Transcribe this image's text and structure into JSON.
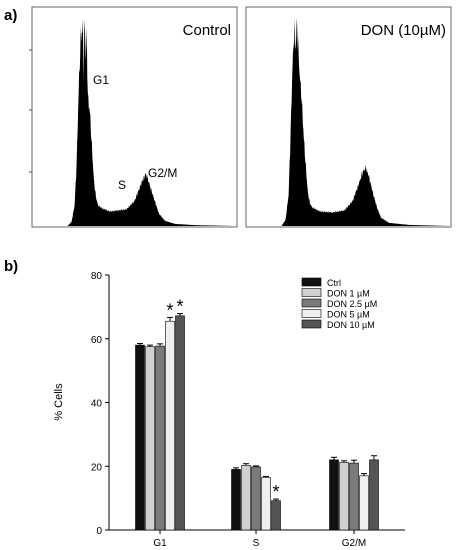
{
  "panel_a": {
    "label": "a)",
    "histograms": [
      {
        "title": "Control",
        "annotations": [
          "G1",
          "S",
          "G2/M"
        ],
        "peaks": {
          "g1_channel": 0.255,
          "g2m_channel": 0.56
        },
        "profile": [
          [
            0.0,
            0
          ],
          [
            0.17,
            0
          ],
          [
            0.19,
            0.02
          ],
          [
            0.205,
            0.1
          ],
          [
            0.215,
            0.3
          ],
          [
            0.225,
            0.65
          ],
          [
            0.235,
            0.9
          ],
          [
            0.245,
            0.96
          ],
          [
            0.25,
            0.75
          ],
          [
            0.255,
            1.0
          ],
          [
            0.26,
            0.8
          ],
          [
            0.265,
            0.92
          ],
          [
            0.27,
            0.62
          ],
          [
            0.28,
            0.55
          ],
          [
            0.29,
            0.38
          ],
          [
            0.3,
            0.22
          ],
          [
            0.31,
            0.14
          ],
          [
            0.32,
            0.1
          ],
          [
            0.34,
            0.085
          ],
          [
            0.38,
            0.07
          ],
          [
            0.42,
            0.075
          ],
          [
            0.46,
            0.08
          ],
          [
            0.5,
            0.12
          ],
          [
            0.52,
            0.17
          ],
          [
            0.54,
            0.22
          ],
          [
            0.555,
            0.25
          ],
          [
            0.565,
            0.23
          ],
          [
            0.58,
            0.18
          ],
          [
            0.6,
            0.12
          ],
          [
            0.62,
            0.06
          ],
          [
            0.65,
            0.025
          ],
          [
            0.7,
            0.01
          ],
          [
            0.8,
            0.004
          ],
          [
            1.0,
            0
          ]
        ]
      },
      {
        "title": "DON (10µM)",
        "annotations": [],
        "profile": [
          [
            0.0,
            0
          ],
          [
            0.17,
            0
          ],
          [
            0.19,
            0.03
          ],
          [
            0.205,
            0.15
          ],
          [
            0.215,
            0.45
          ],
          [
            0.225,
            0.8
          ],
          [
            0.235,
            0.95
          ],
          [
            0.24,
            0.85
          ],
          [
            0.245,
            1.0
          ],
          [
            0.25,
            0.9
          ],
          [
            0.26,
            0.72
          ],
          [
            0.27,
            0.6
          ],
          [
            0.28,
            0.42
          ],
          [
            0.29,
            0.28
          ],
          [
            0.3,
            0.16
          ],
          [
            0.31,
            0.11
          ],
          [
            0.32,
            0.09
          ],
          [
            0.36,
            0.07
          ],
          [
            0.42,
            0.065
          ],
          [
            0.48,
            0.075
          ],
          [
            0.52,
            0.12
          ],
          [
            0.55,
            0.2
          ],
          [
            0.57,
            0.26
          ],
          [
            0.585,
            0.28
          ],
          [
            0.6,
            0.24
          ],
          [
            0.62,
            0.16
          ],
          [
            0.64,
            0.09
          ],
          [
            0.66,
            0.04
          ],
          [
            0.7,
            0.015
          ],
          [
            0.8,
            0.005
          ],
          [
            1.0,
            0
          ]
        ]
      }
    ]
  },
  "panel_b": {
    "label": "b)"
  },
  "chart_data": {
    "type": "bar",
    "title": "",
    "xlabel": "",
    "ylabel": "% Cells",
    "categories": [
      "G1",
      "S",
      "G2/M"
    ],
    "ylim": [
      0,
      80
    ],
    "yticks": [
      0,
      20,
      40,
      60,
      80
    ],
    "legend_position": "top-right",
    "series": [
      {
        "name": "Ctrl",
        "color": "#111111",
        "values": [
          58,
          19,
          22
        ],
        "errors": [
          0.5,
          0.5,
          0.8
        ]
      },
      {
        "name": "DON 1 µM",
        "color": "#d0d0d0",
        "values": [
          57.5,
          20.3,
          21.2
        ],
        "errors": [
          0.5,
          0.5,
          0.5
        ]
      },
      {
        "name": "DON 2.5 µM",
        "color": "#7a7a7a",
        "values": [
          57.7,
          19.8,
          21
        ],
        "errors": [
          0.7,
          0.3,
          0.9
        ]
      },
      {
        "name": "DON 5 µM",
        "color": "#efefef",
        "values": [
          65.5,
          16.5,
          17
        ],
        "errors": [
          1.2,
          0.3,
          0.7
        ]
      },
      {
        "name": "DON 10 µM",
        "color": "#555555",
        "values": [
          67.2,
          9.2,
          22
        ],
        "errors": [
          0.7,
          0.5,
          1.3
        ]
      }
    ],
    "significance": [
      {
        "category": "G1",
        "series": "DON 5 µM",
        "mark": "*"
      },
      {
        "category": "G1",
        "series": "DON 10 µM",
        "mark": "*"
      },
      {
        "category": "S",
        "series": "DON 10 µM",
        "mark": "*"
      }
    ]
  }
}
